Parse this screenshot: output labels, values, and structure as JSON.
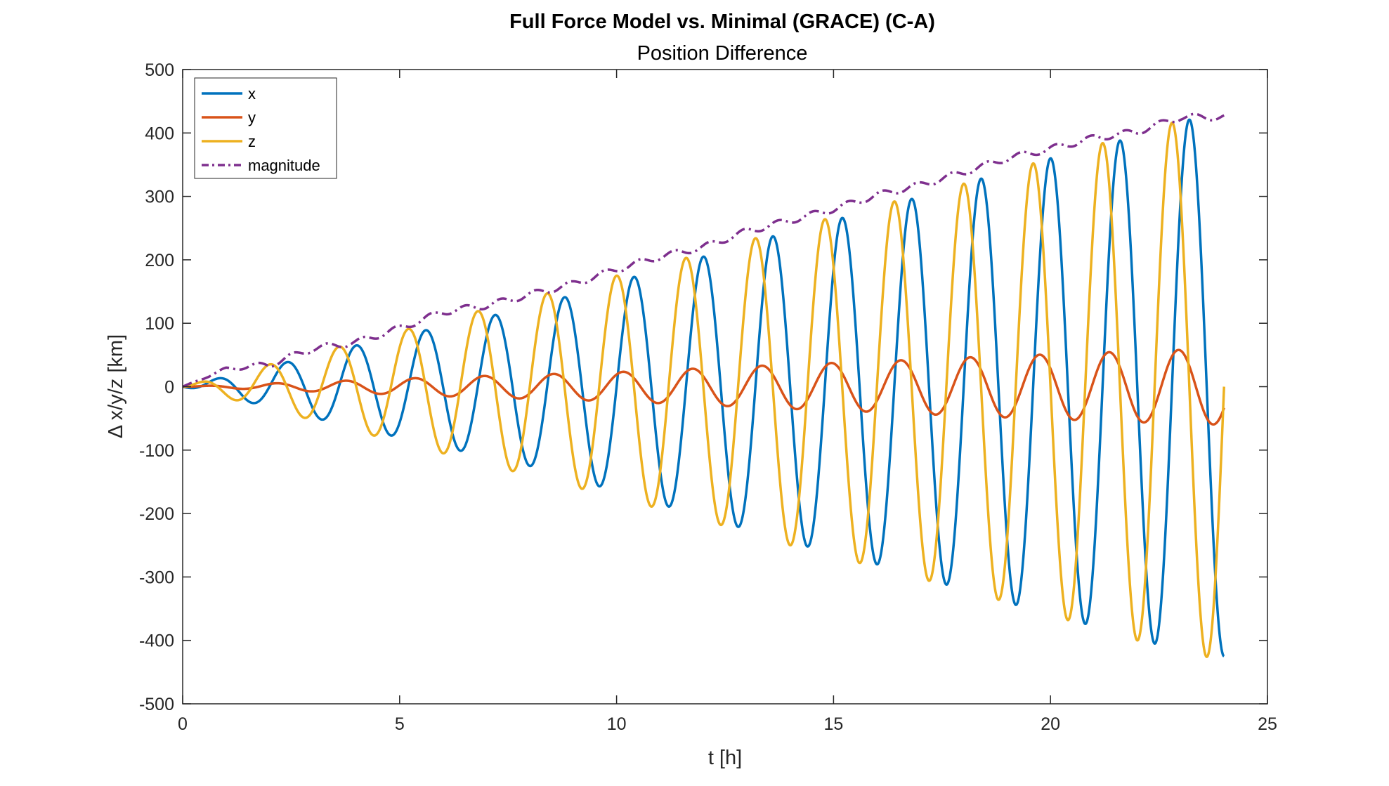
{
  "chart_data": {
    "type": "line",
    "title": "Full Force Model vs. Minimal (GRACE) (C-A)",
    "subtitle": "Position Difference",
    "xlabel": "t [h]",
    "ylabel": "Δ x/y/z [km]",
    "xlim": [
      0,
      25
    ],
    "ylim": [
      -500,
      500
    ],
    "xticks": [
      0,
      5,
      10,
      15,
      20,
      25
    ],
    "yticks": [
      -500,
      -400,
      -300,
      -200,
      -100,
      0,
      100,
      200,
      300,
      400,
      500
    ],
    "grid": false,
    "legend_position": "top-left",
    "x_range": [
      0,
      24
    ],
    "orbital_period_h": 1.6,
    "series": [
      {
        "name": "x",
        "color": "#0072BD",
        "style": "solid",
        "amplitude_envelope": {
          "t": [
            0,
            2,
            4,
            6,
            8,
            10,
            12,
            14,
            16,
            18,
            20,
            22,
            23,
            24
          ],
          "value": [
            0,
            32,
            65,
            95,
            125,
            165,
            205,
            245,
            280,
            320,
            360,
            395,
            420,
            425
          ]
        },
        "phase_lag_h": 0.4
      },
      {
        "name": "y",
        "color": "#D95319",
        "style": "solid",
        "amplitude_envelope": {
          "t": [
            0,
            2,
            4,
            6,
            8,
            10,
            12,
            14,
            16,
            18,
            20,
            22,
            24
          ],
          "value": [
            0,
            5,
            10,
            15,
            19,
            23,
            29,
            35,
            40,
            46,
            51,
            56,
            60
          ]
        },
        "phase_lag_h": 0.15
      },
      {
        "name": "z",
        "color": "#EDB120",
        "style": "solid",
        "amplitude_envelope": {
          "t": [
            0,
            2,
            4,
            6,
            8,
            10,
            12,
            14,
            16,
            18,
            20,
            22,
            23,
            24
          ],
          "value": [
            0,
            35,
            70,
            105,
            140,
            175,
            210,
            250,
            285,
            320,
            360,
            400,
            420,
            430
          ]
        },
        "phase_lag_h": 0.0
      },
      {
        "name": "magnitude",
        "color": "#7E2F8E",
        "style": "dashed",
        "values_t": [
          0,
          1,
          2,
          3,
          4,
          5,
          6,
          7,
          8,
          9,
          10,
          11,
          12,
          13,
          14,
          15,
          16,
          17,
          18,
          19,
          20,
          21,
          22,
          23,
          24
        ],
        "values": [
          0,
          28,
          35,
          60,
          70,
          92,
          118,
          128,
          145,
          162,
          185,
          205,
          220,
          245,
          262,
          280,
          302,
          318,
          338,
          360,
          375,
          392,
          402,
          425,
          425
        ]
      }
    ]
  }
}
